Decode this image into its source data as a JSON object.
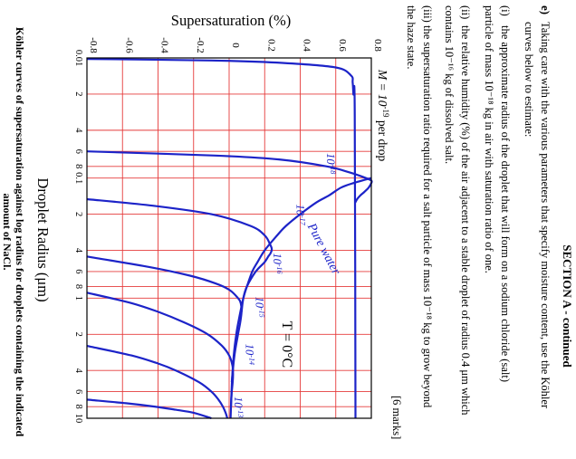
{
  "section": {
    "title": "SECTION A - continued"
  },
  "question": {
    "label": "e)",
    "intro_line1": "Taking care with the various parameters that specify moisture content, use the Köhler",
    "intro_line2": "curves below to estimate:",
    "parts": [
      {
        "num": "(i)",
        "line1": "the approximate radius of the droplet that will form on a sodium chloride (salt)",
        "line2": "particle of mass 10⁻¹⁸ kg in air with saturation ratio of one."
      },
      {
        "num": "(ii)",
        "line1": "the relative humidity (%) of the air adjacent to a stable droplet of radius 0.4 μm which",
        "line2": "contains 10⁻¹⁶ kg of dissolved salt."
      },
      {
        "num": "(iii)",
        "line1": "the supersaturation ratio required for a salt particle of mass 10⁻¹⁸ kg to grow beyond",
        "line2": "the haze state."
      }
    ],
    "marks": "[6 marks]"
  },
  "chart_data": {
    "type": "line",
    "title": "",
    "ylabel": "Supersaturation (%)",
    "xlabel": "Droplet Radius (μm)",
    "xscale": "log",
    "xlim": [
      0.01,
      10
    ],
    "ylim": [
      -0.8,
      0.8
    ],
    "x_tick_labels": [
      "0.01",
      "2",
      "4",
      "6",
      "8",
      "0.1",
      "2",
      "4",
      "6",
      "8",
      "1",
      "2",
      "4",
      "6",
      "8",
      "10"
    ],
    "y_tick_labels": [
      "-0.8",
      "-0.6",
      "-0.4",
      "-0.2",
      "0",
      "0.2",
      "0.4",
      "0.6",
      "0.8"
    ],
    "grid": true,
    "annotations": {
      "mass_prefix": "M = 10",
      "mass_exponent": "-19",
      "mass_suffix": " per drop",
      "temperature": "T = 0°C",
      "pure_water": "Pure water"
    },
    "series": [
      {
        "name": "10⁻¹⁹",
        "base": "10",
        "exp": "-19",
        "x": [
          0.0102,
          0.0105,
          0.011,
          0.012,
          0.014,
          0.016,
          0.02,
          0.03,
          10
        ],
        "y": [
          -0.8,
          -0.1,
          0.3,
          0.6,
          0.686,
          0.695,
          0.699,
          0.707,
          0.711
        ]
      },
      {
        "name": "10⁻¹⁸",
        "base": "10",
        "exp": "-18",
        "x": [
          0.06,
          0.065,
          0.07,
          0.08,
          0.09,
          0.1,
          0.105,
          0.11,
          0.12,
          0.13,
          0.14,
          0.15,
          0.16
        ],
        "y": [
          -0.8,
          -0.08,
          0.28,
          0.55,
          0.68,
          0.77,
          0.8,
          0.8,
          0.785,
          0.762,
          0.737,
          0.72,
          0.71
        ]
      },
      {
        "name": "10⁻¹⁷",
        "base": "10",
        "exp": "-17",
        "x": [
          0.15,
          0.17,
          0.2,
          0.25,
          0.3,
          0.36,
          0.39,
          0.42,
          0.45,
          0.5,
          0.6,
          0.8,
          1.0,
          1.3
        ],
        "y": [
          -0.8,
          -0.43,
          -0.1,
          0.12,
          0.2,
          0.232,
          0.24,
          0.234,
          0.22,
          0.2,
          0.15,
          0.1,
          0.08,
          0.07
        ]
      },
      {
        "name": "10⁻¹⁶",
        "base": "10",
        "exp": "-16",
        "x": [
          0.45,
          0.55,
          0.65,
          0.75,
          0.85,
          1.0,
          1.1,
          1.3,
          1.6,
          2.0,
          3.0,
          5.0
        ],
        "y": [
          -0.8,
          -0.45,
          -0.22,
          -0.08,
          0.0,
          0.05,
          0.065,
          0.07,
          0.062,
          0.05,
          0.03,
          0.015
        ]
      },
      {
        "name": "10⁻¹⁵",
        "base": "10",
        "exp": "-15",
        "x": [
          0.9,
          1.1,
          1.3,
          1.6,
          2.0,
          2.5,
          3.0,
          3.6,
          4.2,
          5.0,
          6.0,
          8.0
        ],
        "y": [
          -0.8,
          -0.55,
          -0.4,
          -0.25,
          -0.12,
          -0.04,
          0.0,
          0.018,
          0.022,
          0.02,
          0.015,
          0.01
        ]
      },
      {
        "name": "10⁻¹⁴",
        "base": "10",
        "exp": "-14",
        "x": [
          2.5,
          3.0,
          3.5,
          4.0,
          5.0,
          6.0,
          7.0,
          8.0,
          9.0,
          10.0
        ],
        "y": [
          -0.8,
          -0.55,
          -0.4,
          -0.3,
          -0.17,
          -0.1,
          -0.06,
          -0.035,
          -0.02,
          -0.01
        ]
      },
      {
        "name": "10⁻¹³",
        "base": "10",
        "exp": "-13",
        "x": [
          7.0,
          7.5,
          8.0,
          8.5,
          9.0,
          10.0
        ],
        "y": [
          -0.8,
          -0.58,
          -0.42,
          -0.3,
          -0.2,
          -0.1
        ]
      },
      {
        "name": "Pure water",
        "base": "",
        "exp": "",
        "x": [
          0.1,
          0.11,
          0.12,
          0.14,
          0.16,
          0.2,
          0.25,
          0.3,
          0.4,
          0.5,
          0.6,
          0.8,
          1.0,
          1.5,
          2.0,
          3.0,
          5.0,
          10.0
        ],
        "y": [
          0.8,
          0.7,
          0.63,
          0.56,
          0.49,
          0.4,
          0.32,
          0.27,
          0.2,
          0.16,
          0.13,
          0.1,
          0.08,
          0.055,
          0.04,
          0.026,
          0.016,
          0.008
        ]
      }
    ]
  },
  "caption": {
    "line1": "Köhler curves of supersaturation against log radius for droplets containing the indicated",
    "line2": "amount of NaCl."
  }
}
